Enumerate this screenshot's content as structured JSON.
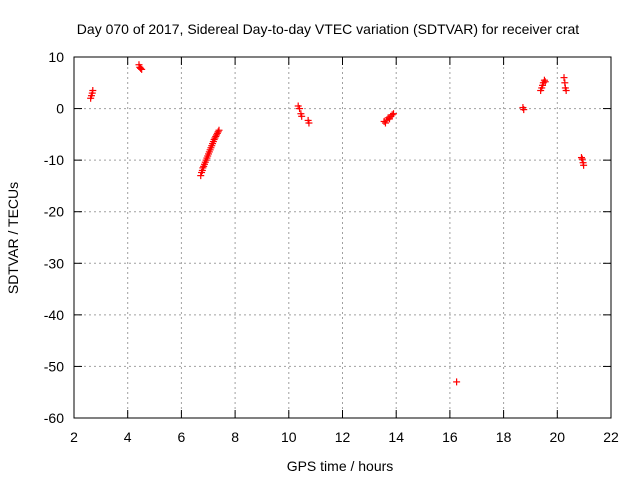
{
  "chart_data": {
    "type": "scatter",
    "title": "Day 070 of 2017, Sidereal Day-to-day VTEC variation (SDTVAR) for receiver crat",
    "xlabel": "GPS time / hours",
    "ylabel": "SDTVAR / TECUs",
    "xlim": [
      2,
      22
    ],
    "ylim": [
      -60,
      10
    ],
    "xticks": [
      2,
      4,
      6,
      8,
      10,
      12,
      14,
      16,
      18,
      20,
      22
    ],
    "yticks": [
      10,
      0,
      -10,
      -20,
      -30,
      -40,
      -50,
      -60
    ],
    "xtick_labels": [
      "2",
      "4",
      "6",
      "8",
      "10",
      "12",
      "14",
      "16",
      "18",
      "20",
      "22"
    ],
    "ytick_labels": [
      "10",
      "0",
      "-10",
      "-20",
      "-30",
      "-40",
      "-50",
      "-60"
    ],
    "grid": true,
    "marker": "+",
    "colors": {
      "series": "#ff0000",
      "axis": "#000000",
      "grid": "#a0a0a0"
    },
    "series": [
      {
        "name": "SDTVAR",
        "points": [
          [
            2.62,
            2.0
          ],
          [
            2.65,
            2.5
          ],
          [
            2.68,
            3.0
          ],
          [
            2.7,
            3.5
          ],
          [
            4.42,
            8.5
          ],
          [
            4.45,
            8.0
          ],
          [
            4.48,
            7.8
          ],
          [
            4.52,
            7.6
          ],
          [
            6.72,
            -13.0
          ],
          [
            6.75,
            -12.4
          ],
          [
            6.78,
            -12.0
          ],
          [
            6.8,
            -11.5
          ],
          [
            6.83,
            -11.2
          ],
          [
            6.86,
            -10.8
          ],
          [
            6.89,
            -10.4
          ],
          [
            6.92,
            -10.0
          ],
          [
            6.95,
            -9.6
          ],
          [
            6.98,
            -9.2
          ],
          [
            7.01,
            -8.8
          ],
          [
            7.04,
            -8.4
          ],
          [
            7.07,
            -8.0
          ],
          [
            7.1,
            -7.6
          ],
          [
            7.13,
            -7.2
          ],
          [
            7.16,
            -6.8
          ],
          [
            7.19,
            -6.4
          ],
          [
            7.22,
            -6.0
          ],
          [
            7.25,
            -5.7
          ],
          [
            7.28,
            -5.4
          ],
          [
            7.31,
            -5.1
          ],
          [
            7.34,
            -4.8
          ],
          [
            7.37,
            -4.5
          ],
          [
            7.4,
            -4.2
          ],
          [
            10.35,
            0.5
          ],
          [
            10.4,
            0.0
          ],
          [
            10.45,
            -1.0
          ],
          [
            10.48,
            -1.5
          ],
          [
            10.72,
            -2.3
          ],
          [
            10.75,
            -2.8
          ],
          [
            13.55,
            -2.5
          ],
          [
            13.6,
            -2.8
          ],
          [
            13.65,
            -2.2
          ],
          [
            13.7,
            -1.8
          ],
          [
            13.75,
            -2.0
          ],
          [
            13.8,
            -1.5
          ],
          [
            13.85,
            -1.2
          ],
          [
            13.9,
            -1.0
          ],
          [
            16.25,
            -53.0
          ],
          [
            18.72,
            0.2
          ],
          [
            18.75,
            -0.2
          ],
          [
            19.38,
            3.5
          ],
          [
            19.42,
            4.0
          ],
          [
            19.45,
            4.5
          ],
          [
            19.48,
            5.0
          ],
          [
            19.52,
            5.5
          ],
          [
            19.55,
            5.2
          ],
          [
            20.25,
            6.0
          ],
          [
            20.28,
            5.0
          ],
          [
            20.3,
            4.0
          ],
          [
            20.33,
            3.5
          ],
          [
            20.9,
            -9.5
          ],
          [
            20.93,
            -9.8
          ],
          [
            20.96,
            -10.5
          ],
          [
            20.98,
            -11.0
          ]
        ]
      }
    ]
  }
}
